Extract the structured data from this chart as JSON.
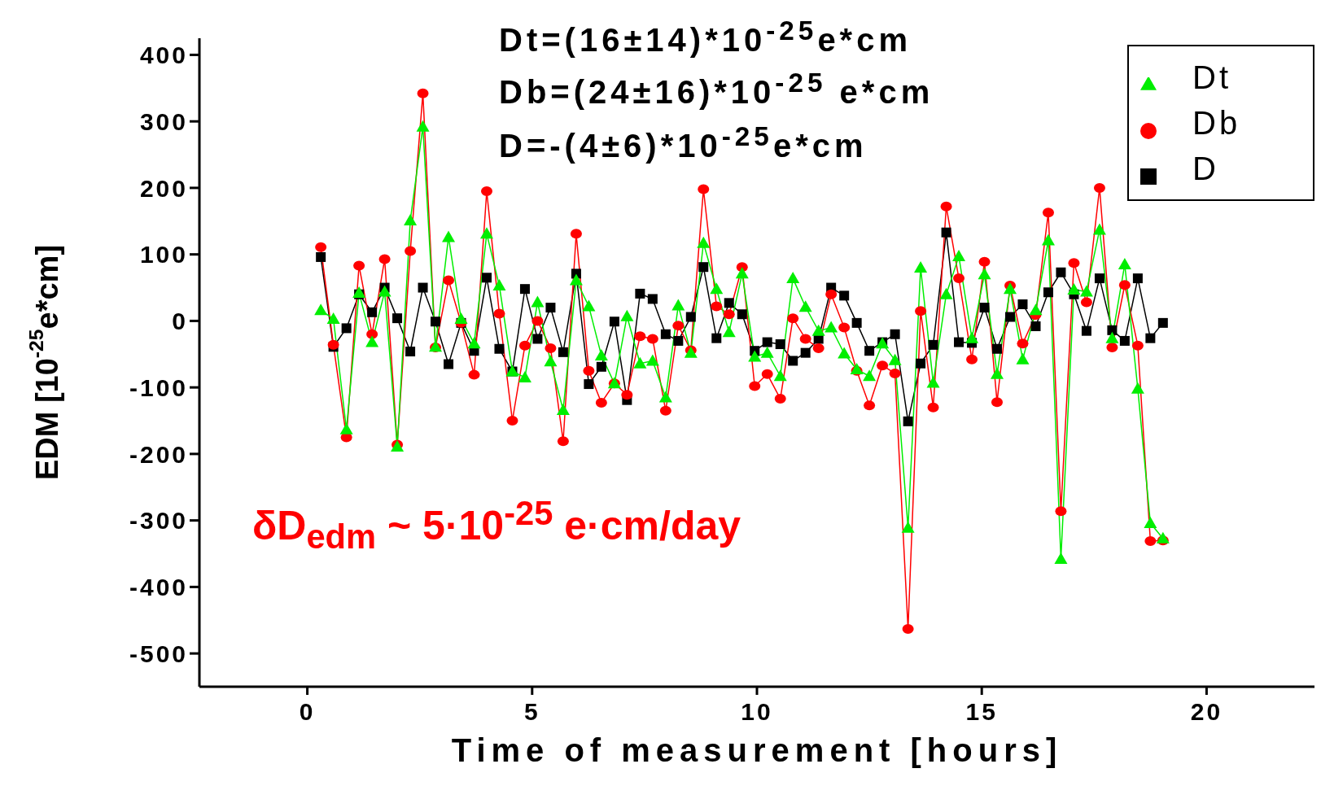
{
  "chart_data": {
    "type": "line",
    "xlabel": "Time of measurement [hours]",
    "ylabel": "EDM [10$^{-25}$e*cm]",
    "annotations": [
      "Dt=(16±14)*10$^{-25}$e*cm",
      "Db=(24±16)*10$^{-25}$ e*cm",
      "D=-(4±6)*10$^{-25}$e*cm",
      "δD$_{edm}$ ~ 5·10$^{-25}$ e·cm/day"
    ],
    "x": [
      0.3,
      0.58,
      0.87,
      1.15,
      1.44,
      1.72,
      2.0,
      2.29,
      2.57,
      2.85,
      3.14,
      3.42,
      3.71,
      3.99,
      4.27,
      4.56,
      4.84,
      5.12,
      5.41,
      5.69,
      5.98,
      6.26,
      6.54,
      6.83,
      7.11,
      7.4,
      7.68,
      7.97,
      8.25,
      8.53,
      8.81,
      9.1,
      9.38,
      9.67,
      9.95,
      10.23,
      10.52,
      10.8,
      11.08,
      11.37,
      11.65,
      11.94,
      12.22,
      12.5,
      12.79,
      13.07,
      13.36,
      13.64,
      13.92,
      14.21,
      14.49,
      14.78,
      15.06,
      15.34,
      15.63,
      15.91,
      16.2,
      16.48,
      16.76,
      17.05,
      17.33,
      17.62,
      17.9,
      18.18,
      18.47,
      18.75,
      19.03
    ],
    "series": [
      {
        "name": "Dt",
        "color": "#00ee00",
        "marker": "triangle",
        "values": [
          16,
          3,
          -163,
          42,
          -32,
          44,
          -189,
          151,
          292,
          -39,
          126,
          3,
          -34,
          131,
          53,
          -76,
          -85,
          28,
          -61,
          -134,
          61,
          22,
          -52,
          -94,
          7,
          -64,
          -60,
          -115,
          23,
          -48,
          117,
          48,
          -17,
          71,
          -54,
          -48,
          -83,
          64,
          21,
          -15,
          -10,
          -49,
          -73,
          -83,
          -34,
          -59,
          -311,
          80,
          -93,
          40,
          97,
          -26,
          70,
          -80,
          48,
          -58,
          16,
          121,
          -358,
          47,
          44,
          137,
          -26,
          85,
          -102,
          -304,
          -327
        ]
      },
      {
        "name": "Db",
        "color": "#ff0000",
        "marker": "circle",
        "values": [
          111,
          -36,
          -175,
          83,
          -20,
          93,
          -186,
          105,
          342,
          -40,
          61,
          -3,
          -81,
          195,
          11,
          -150,
          -37,
          0,
          -41,
          -181,
          131,
          -75,
          -123,
          -94,
          -111,
          -23,
          -27,
          -135,
          -7,
          -44,
          198,
          22,
          10,
          81,
          -98,
          -80,
          -117,
          4,
          -27,
          -41,
          40,
          -10,
          -75,
          -127,
          -67,
          -79,
          -463,
          15,
          -130,
          172,
          64,
          -58,
          89,
          -122,
          53,
          -34,
          9,
          163,
          -286,
          87,
          28,
          200,
          -40,
          54,
          -37,
          -331,
          -330
        ]
      },
      {
        "name": "D",
        "color": "#000000",
        "marker": "square",
        "values": [
          96,
          -39,
          -11,
          40,
          13,
          50,
          4,
          -46,
          50,
          -1,
          -65,
          -3,
          -45,
          65,
          -42,
          -76,
          48,
          -27,
          20,
          -47,
          71,
          -95,
          -69,
          -1,
          -119,
          41,
          33,
          -20,
          -30,
          6,
          81,
          -26,
          27,
          10,
          -45,
          -32,
          -35,
          -60,
          -48,
          -27,
          50,
          38,
          -3,
          -45,
          -32,
          -20,
          -151,
          -64,
          -36,
          133,
          -32,
          -33,
          20,
          -42,
          6,
          25,
          -8,
          43,
          73,
          40,
          -15,
          64,
          -14,
          -30,
          64,
          -26,
          -3
        ]
      }
    ],
    "xlim": [
      -2.4,
      22.4
    ],
    "xticks": [
      0,
      5,
      10,
      15,
      20
    ],
    "ylim": [
      -550,
      425
    ],
    "yticks": [
      -500,
      -400,
      -300,
      -200,
      -100,
      0,
      100,
      200,
      300,
      400
    ],
    "legend": "top right",
    "line_style": "solid"
  }
}
